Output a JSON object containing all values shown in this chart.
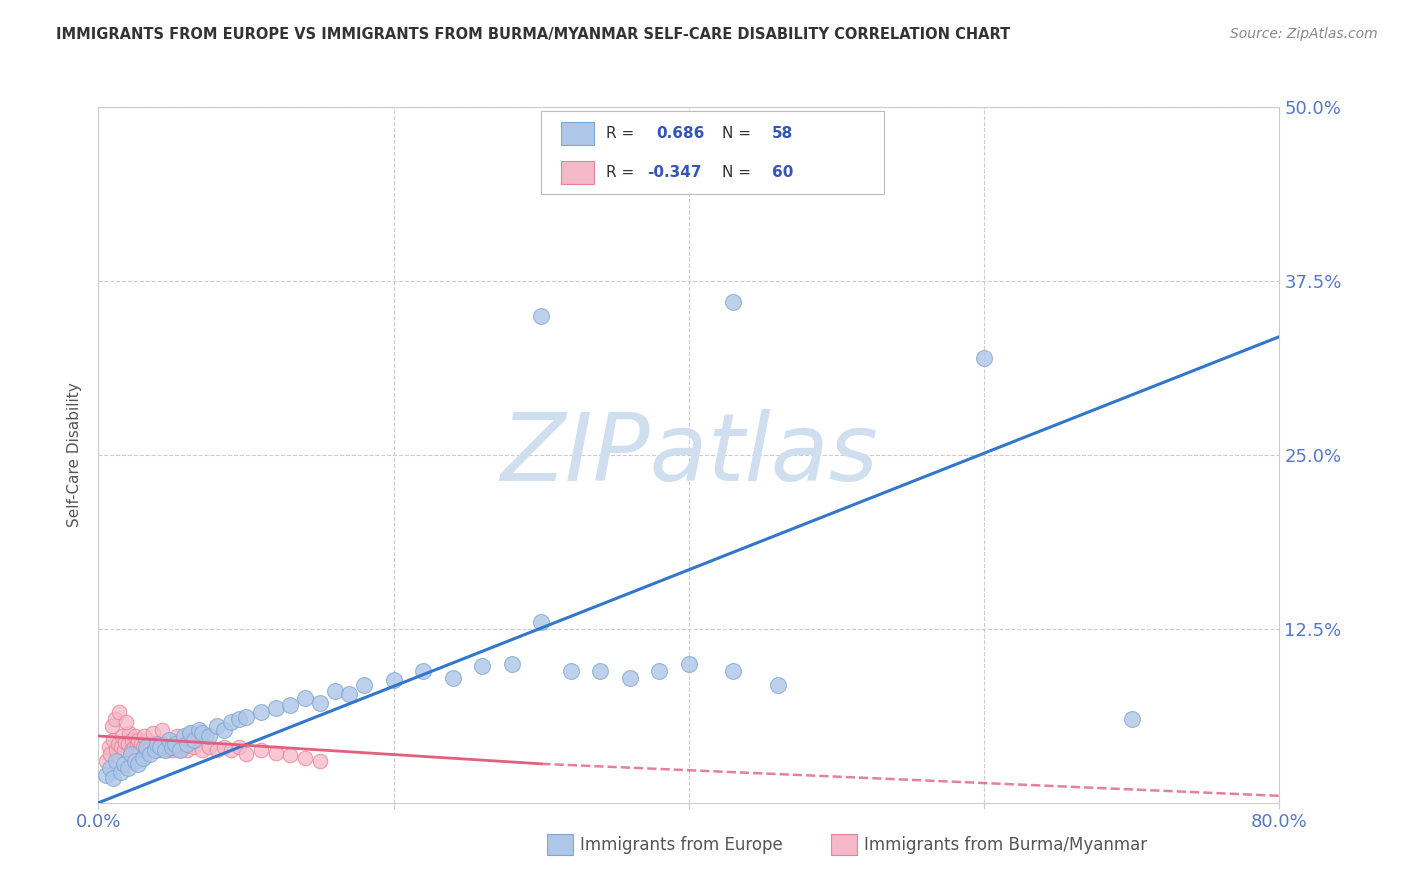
{
  "title": "IMMIGRANTS FROM EUROPE VS IMMIGRANTS FROM BURMA/MYANMAR SELF-CARE DISABILITY CORRELATION CHART",
  "source": "Source: ZipAtlas.com",
  "ylabel": "Self-Care Disability",
  "xlim": [
    0,
    0.8
  ],
  "ylim": [
    0,
    0.5
  ],
  "xticks": [
    0.0,
    0.2,
    0.4,
    0.6,
    0.8
  ],
  "yticks": [
    0.0,
    0.125,
    0.25,
    0.375,
    0.5
  ],
  "blue_color": "#aec6e8",
  "blue_edge": "#80a8d4",
  "pink_color": "#f4b8c8",
  "pink_edge": "#e8829a",
  "trend_blue": "#3377cc",
  "trend_pink": "#e06080",
  "R_blue": 0.686,
  "N_blue": 58,
  "R_pink": -0.347,
  "N_pink": 60,
  "legend_label_color": "#333333",
  "legend_val_color": "#3355bb",
  "watermark": "ZIPatlas",
  "watermark_color": "#d0dff0",
  "background": "#ffffff",
  "grid_color": "#cccccc",
  "tick_color": "#5577cc",
  "blue_scatter_x": [
    0.005,
    0.008,
    0.01,
    0.012,
    0.015,
    0.017,
    0.02,
    0.022,
    0.025,
    0.027,
    0.03,
    0.032,
    0.035,
    0.038,
    0.04,
    0.042,
    0.045,
    0.048,
    0.05,
    0.052,
    0.055,
    0.058,
    0.06,
    0.062,
    0.065,
    0.068,
    0.07,
    0.075,
    0.08,
    0.085,
    0.09,
    0.095,
    0.1,
    0.11,
    0.12,
    0.13,
    0.14,
    0.15,
    0.16,
    0.17,
    0.18,
    0.2,
    0.22,
    0.24,
    0.26,
    0.28,
    0.3,
    0.32,
    0.34,
    0.36,
    0.38,
    0.4,
    0.43,
    0.46,
    0.3,
    0.43,
    0.6,
    0.7
  ],
  "blue_scatter_y": [
    0.02,
    0.025,
    0.018,
    0.03,
    0.022,
    0.028,
    0.025,
    0.035,
    0.03,
    0.028,
    0.032,
    0.04,
    0.035,
    0.038,
    0.042,
    0.04,
    0.038,
    0.045,
    0.04,
    0.042,
    0.038,
    0.048,
    0.042,
    0.05,
    0.045,
    0.052,
    0.05,
    0.048,
    0.055,
    0.052,
    0.058,
    0.06,
    0.062,
    0.065,
    0.068,
    0.07,
    0.075,
    0.072,
    0.08,
    0.078,
    0.085,
    0.088,
    0.095,
    0.09,
    0.098,
    0.1,
    0.13,
    0.095,
    0.095,
    0.09,
    0.095,
    0.1,
    0.095,
    0.085,
    0.35,
    0.36,
    0.32,
    0.06
  ],
  "pink_scatter_x": [
    0.005,
    0.007,
    0.008,
    0.01,
    0.012,
    0.013,
    0.015,
    0.016,
    0.017,
    0.018,
    0.02,
    0.021,
    0.022,
    0.023,
    0.024,
    0.025,
    0.026,
    0.027,
    0.028,
    0.029,
    0.03,
    0.032,
    0.033,
    0.035,
    0.036,
    0.038,
    0.04,
    0.042,
    0.044,
    0.045,
    0.047,
    0.048,
    0.05,
    0.052,
    0.055,
    0.058,
    0.06,
    0.065,
    0.07,
    0.075,
    0.08,
    0.085,
    0.09,
    0.095,
    0.1,
    0.11,
    0.12,
    0.13,
    0.14,
    0.15,
    0.009,
    0.011,
    0.014,
    0.019,
    0.031,
    0.037,
    0.043,
    0.053,
    0.063,
    0.073
  ],
  "pink_scatter_y": [
    0.03,
    0.04,
    0.035,
    0.045,
    0.038,
    0.042,
    0.04,
    0.048,
    0.038,
    0.044,
    0.042,
    0.05,
    0.038,
    0.045,
    0.04,
    0.048,
    0.042,
    0.045,
    0.038,
    0.042,
    0.04,
    0.038,
    0.045,
    0.04,
    0.042,
    0.038,
    0.04,
    0.038,
    0.042,
    0.04,
    0.038,
    0.04,
    0.038,
    0.04,
    0.038,
    0.04,
    0.038,
    0.04,
    0.038,
    0.04,
    0.038,
    0.04,
    0.038,
    0.04,
    0.035,
    0.038,
    0.036,
    0.034,
    0.032,
    0.03,
    0.055,
    0.06,
    0.065,
    0.058,
    0.048,
    0.05,
    0.052,
    0.048,
    0.05,
    0.048
  ],
  "blue_trend_x0": 0.0,
  "blue_trend_y0": 0.0,
  "blue_trend_x1": 0.8,
  "blue_trend_y1": 0.335,
  "pink_trend_x0": 0.0,
  "pink_trend_y0": 0.048,
  "pink_trend_x1": 0.3,
  "pink_trend_y1": 0.028,
  "pink_trend_x2": 0.8,
  "pink_trend_y2": 0.005
}
